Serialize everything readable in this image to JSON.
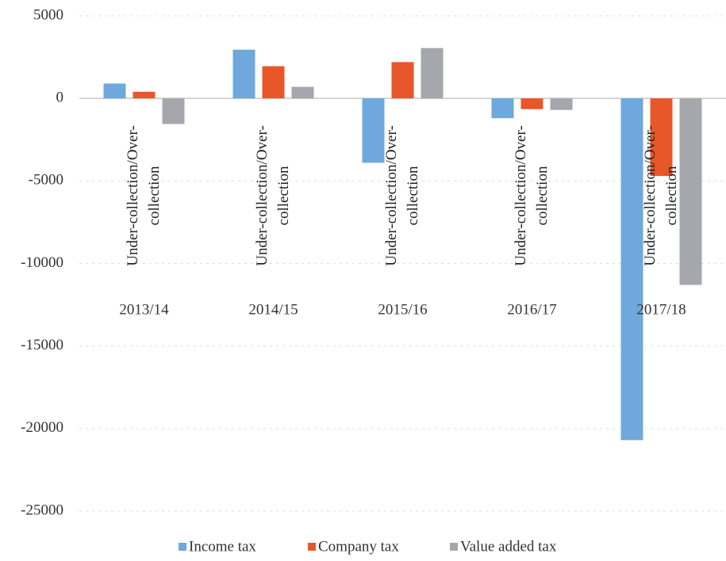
{
  "chart_data": {
    "type": "bar",
    "categories": [
      "2013/14",
      "2014/15",
      "2015/16",
      "2016/17",
      "2017/18"
    ],
    "sub_labels": [
      "Under-collection/Over-collection",
      "Under-collection/Over-collection",
      "Under-collection/Over-collection",
      "Under-collection/Over-collection",
      "Under-collection/Over-collection"
    ],
    "series": [
      {
        "name": "Income tax",
        "color": "#6fa8dc",
        "values": [
          900,
          2950,
          -3900,
          -1200,
          -20700
        ]
      },
      {
        "name": "Company tax",
        "color": "#e8572a",
        "values": [
          400,
          1950,
          2200,
          -650,
          -4700
        ]
      },
      {
        "name": "Value added tax",
        "color": "#a6a6ad",
        "values": [
          -1550,
          700,
          3050,
          -700,
          -11300
        ]
      }
    ],
    "ylim": [
      -25000,
      5000
    ],
    "yticks": [
      -25000,
      -20000,
      -15000,
      -10000,
      -5000,
      0,
      5000
    ],
    "grid": true,
    "legend": "bottom"
  }
}
